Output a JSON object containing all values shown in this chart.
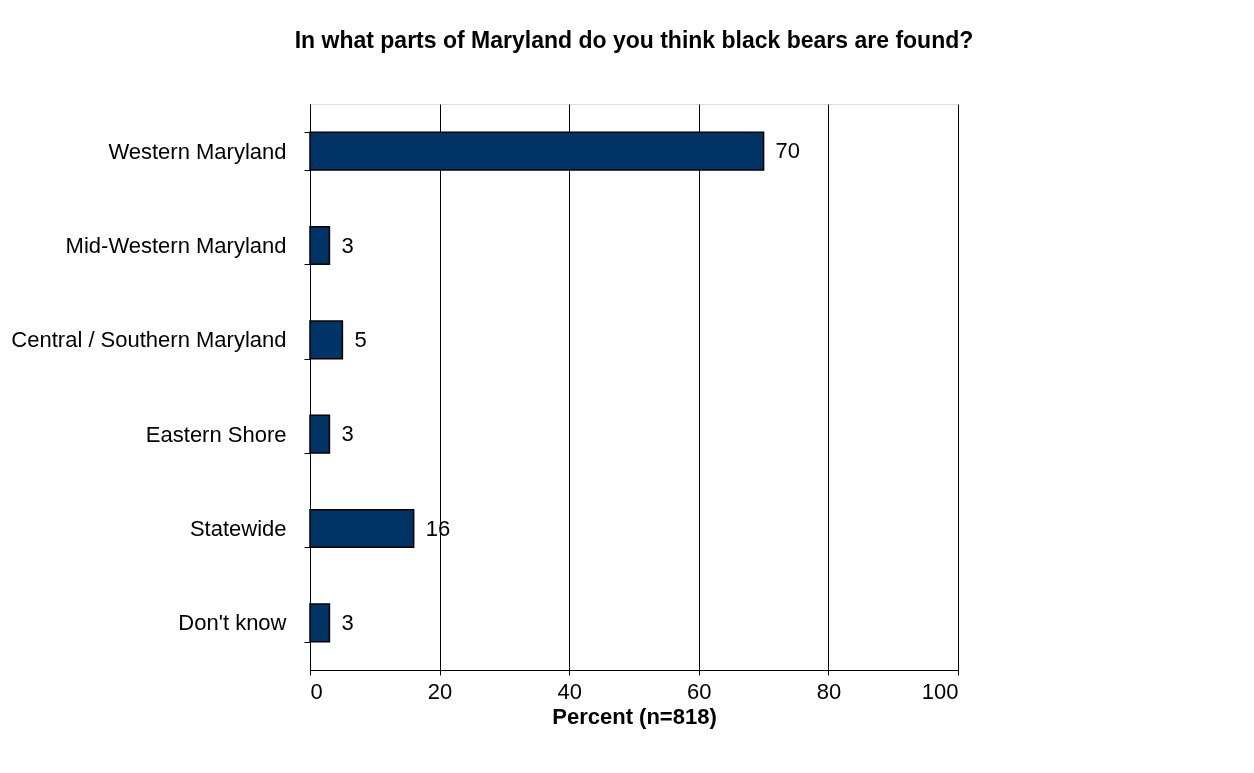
{
  "chart_data": {
    "type": "bar",
    "orientation": "horizontal",
    "title": "In what parts of Maryland do you think black bears are found?",
    "xlabel": "Percent (n=818)",
    "categories": [
      "Western Maryland",
      "Mid-Western Maryland",
      "Central / Southern Maryland",
      "Eastern Shore",
      "Statewide",
      "Don't know"
    ],
    "values": [
      70,
      3,
      5,
      3,
      16,
      3
    ],
    "color": "#003366",
    "xlim": [
      0,
      100
    ],
    "xticks": [
      0,
      20,
      40,
      60,
      80,
      100
    ],
    "grid": "x",
    "data_labels": true
  }
}
